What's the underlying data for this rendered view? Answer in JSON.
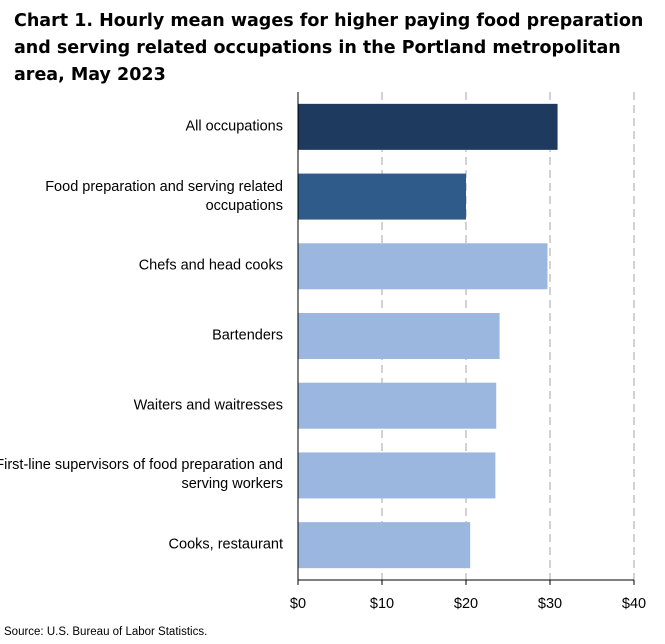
{
  "chart_data": {
    "type": "bar",
    "orientation": "horizontal",
    "title": "Chart 1. Hourly mean wages for higher paying food preparation and serving related occupations in the Portland metropolitan area, May 2023",
    "categories": [
      "All occupations",
      "Food preparation and serving related occupations",
      "Chefs and head cooks",
      "Bartenders",
      "Waiters and waitresses",
      "First-line supervisors of food preparation and serving workers",
      "Cooks, restaurant"
    ],
    "values": [
      30.9,
      20.0,
      29.7,
      24.0,
      23.6,
      23.5,
      20.5
    ],
    "bar_colors": [
      "#1f3a5f",
      "#2e5b8a",
      "#9bb7e0",
      "#9bb7e0",
      "#9bb7e0",
      "#9bb7e0",
      "#9bb7e0"
    ],
    "xlim": [
      0,
      40
    ],
    "x_ticks": [
      0,
      10,
      20,
      30,
      40
    ],
    "x_tick_labels": [
      "$0",
      "$10",
      "$20",
      "$30",
      "$40"
    ],
    "xlabel": "",
    "ylabel": "",
    "grid": "vertical dashed",
    "source": "Source: U.S. Bureau of Labor Statistics."
  }
}
